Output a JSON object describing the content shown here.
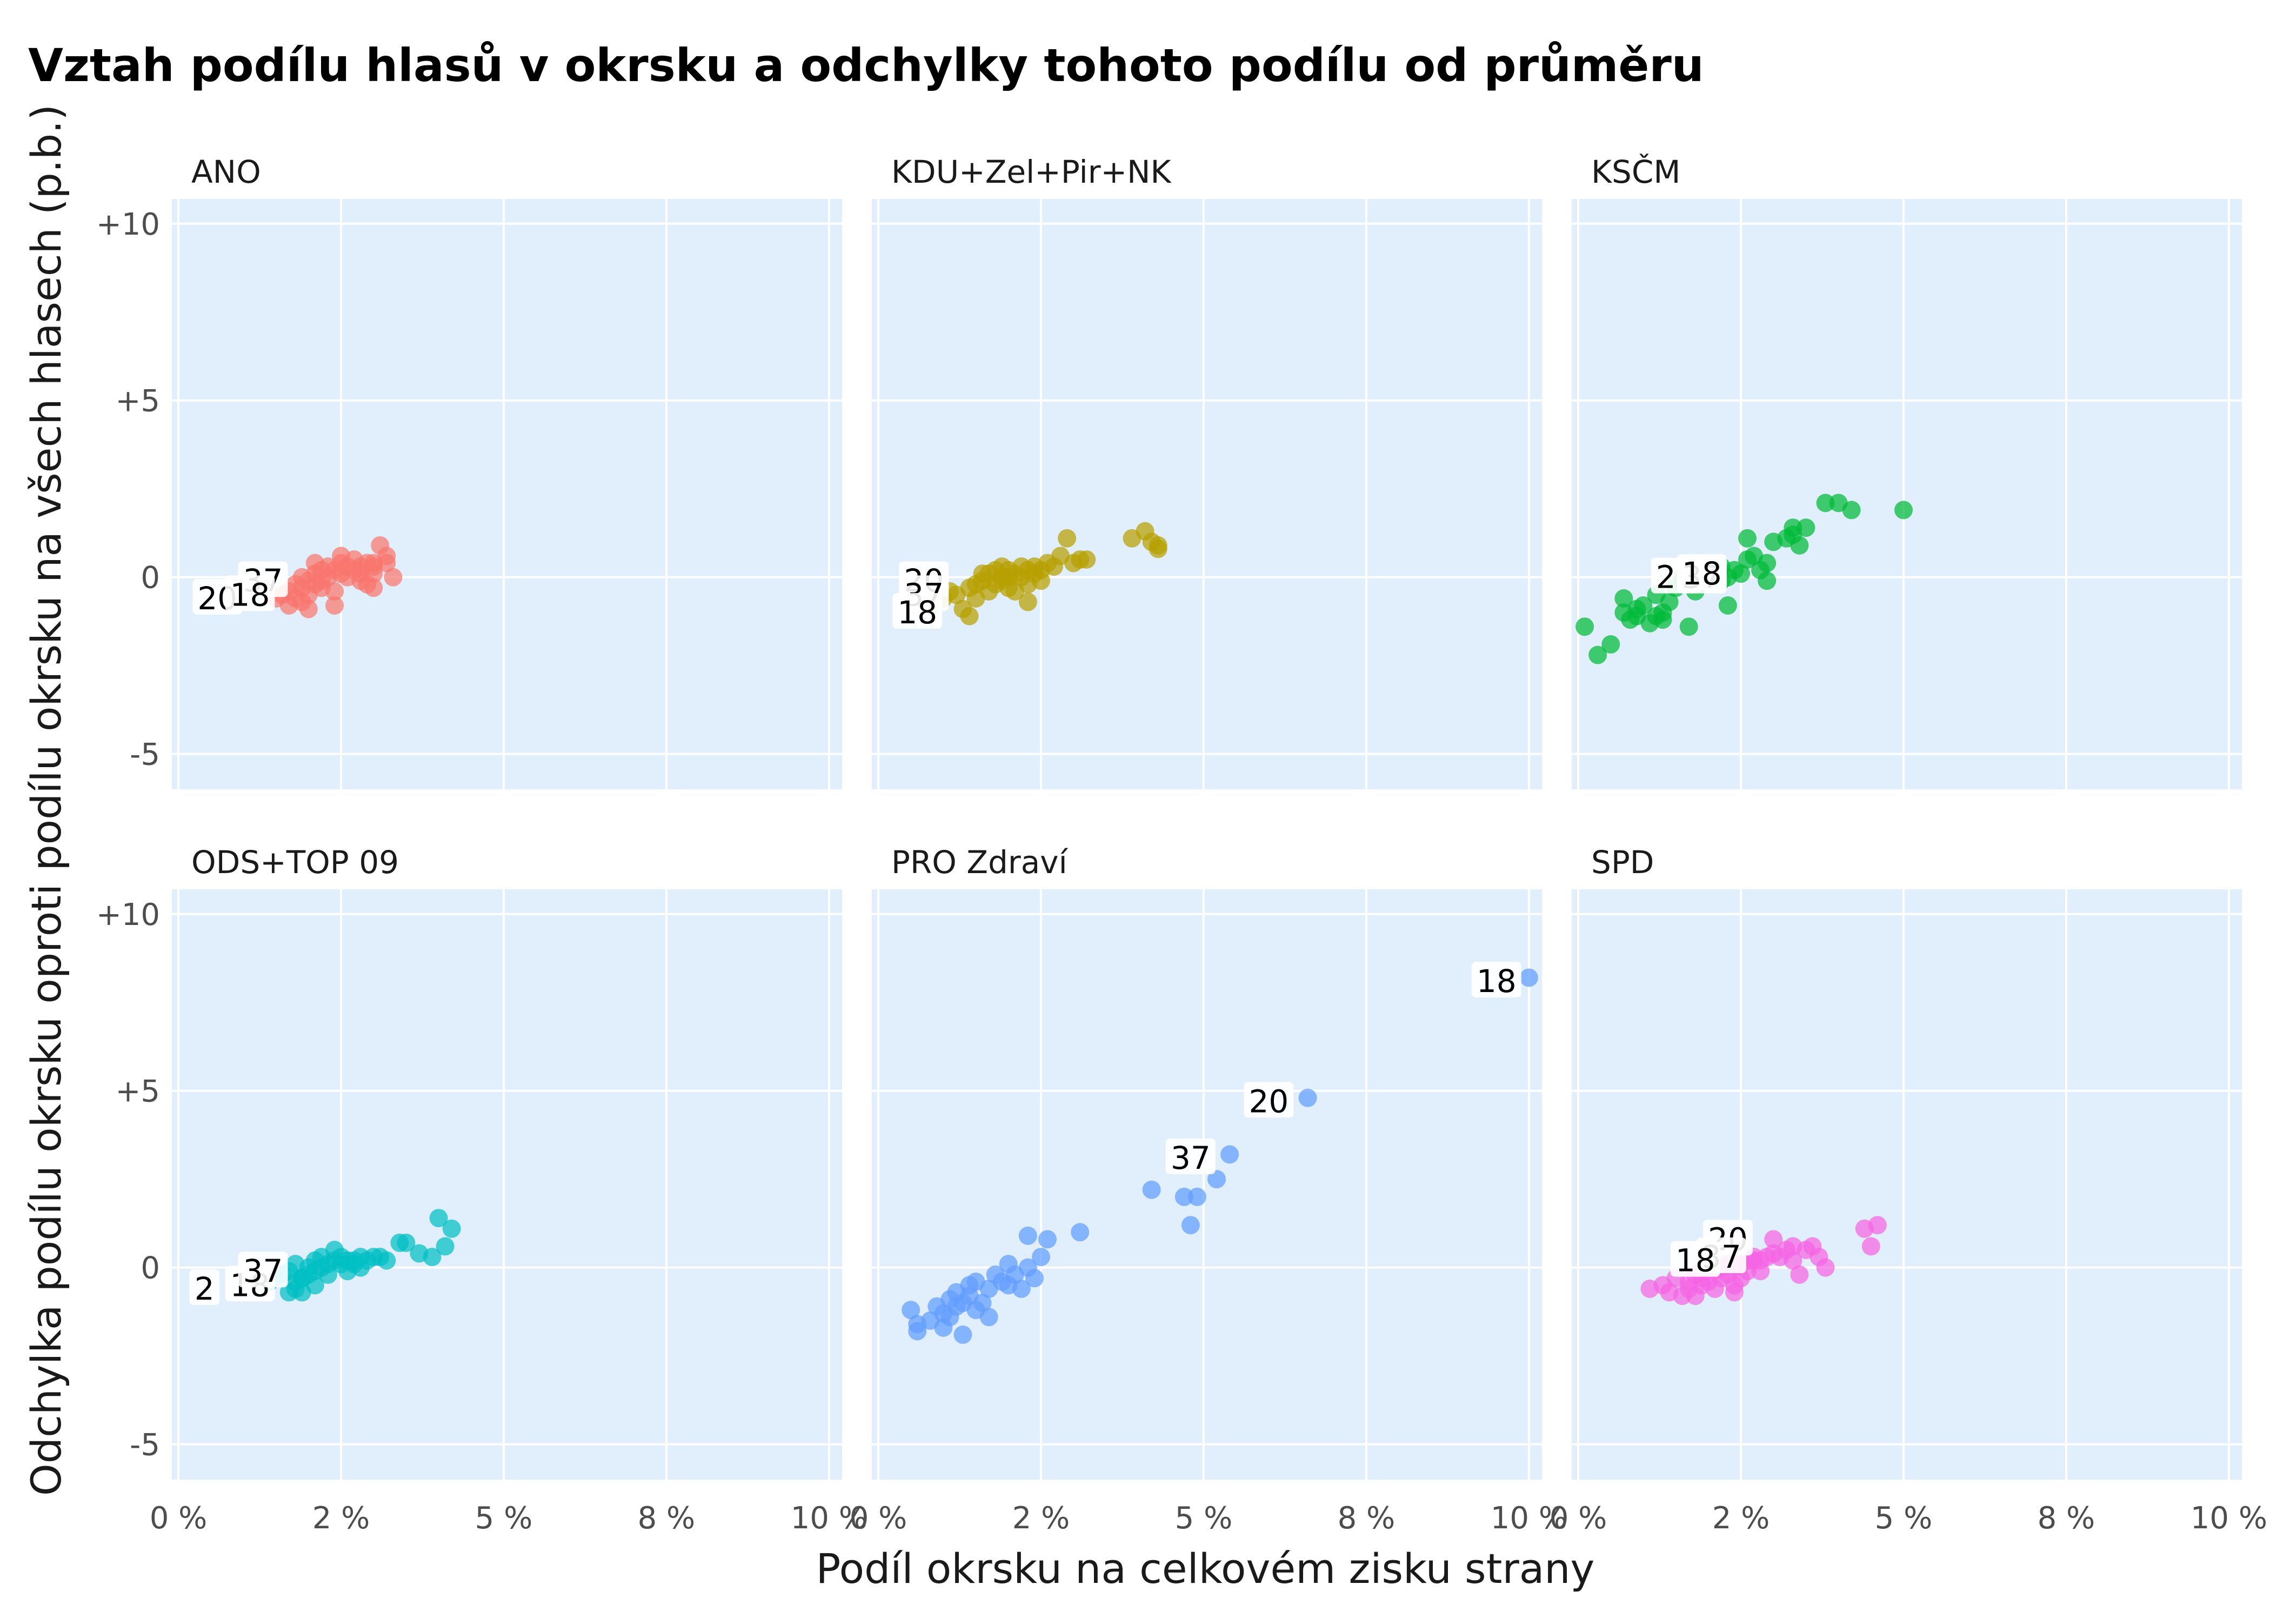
{
  "chart_data": {
    "type": "scatter",
    "title": "Vztah podílu hlasů v okrsku a odchylky tohoto podílu od průměru",
    "xlabel": "Podíl okrsku na celkovém zisku strany",
    "ylabel": "Odchylka podílu okrsku oproti podílu okrsku na všech hlasech (p.b.)",
    "xlim": [
      -0.1,
      10.2
    ],
    "ylim": [
      -6.0,
      10.7
    ],
    "x_ticks": [
      0,
      2.5,
      5,
      7.5,
      10
    ],
    "x_tick_labels": [
      "0 %",
      "2 %",
      "5 %",
      "8 %",
      "10 %"
    ],
    "y_ticks": [
      -5,
      0,
      5,
      10
    ],
    "y_tick_labels": [
      "-5",
      "0",
      "+5",
      "+10"
    ],
    "panel_background": "#e1effc",
    "grid": true,
    "legend": "none",
    "facets": [
      {
        "name": "ANO",
        "color": "#f8766d",
        "points": [
          [
            1.5,
            -0.6
          ],
          [
            1.6,
            -0.5
          ],
          [
            1.7,
            -0.4
          ],
          [
            1.7,
            -0.8
          ],
          [
            1.8,
            -0.2
          ],
          [
            1.8,
            -0.6
          ],
          [
            1.9,
            -0.3
          ],
          [
            1.9,
            -0.7
          ],
          [
            2.0,
            -0.1
          ],
          [
            2.0,
            -0.5
          ],
          [
            2.0,
            -0.9
          ],
          [
            2.1,
            0.1
          ],
          [
            2.1,
            -0.2
          ],
          [
            2.1,
            0.4
          ],
          [
            2.2,
            0.2
          ],
          [
            2.2,
            -0.1
          ],
          [
            2.3,
            0.0
          ],
          [
            2.3,
            0.3
          ],
          [
            2.4,
            0.2
          ],
          [
            2.4,
            -0.4
          ],
          [
            2.4,
            -0.8
          ],
          [
            2.5,
            0.6
          ],
          [
            2.5,
            0.1
          ],
          [
            2.5,
            0.4
          ],
          [
            2.6,
            0.0
          ],
          [
            2.6,
            0.3
          ],
          [
            2.7,
            0.5
          ],
          [
            2.7,
            0.2
          ],
          [
            2.8,
            0.3
          ],
          [
            2.8,
            0.1
          ],
          [
            2.9,
            0.4
          ],
          [
            3.0,
            0.3
          ],
          [
            3.0,
            0.1
          ],
          [
            2.8,
            -0.1
          ],
          [
            3.0,
            0.4
          ],
          [
            2.9,
            -0.2
          ],
          [
            3.0,
            -0.3
          ],
          [
            3.1,
            0.9
          ],
          [
            3.2,
            0.4
          ],
          [
            3.3,
            0.0
          ],
          [
            3.2,
            0.6
          ],
          [
            2.2,
            -0.3
          ],
          [
            1.9,
            0.0
          ]
        ],
        "labels": [
          {
            "text": "20",
            "x": 0.6,
            "y": -0.6
          },
          {
            "text": "37",
            "x": 1.3,
            "y": -0.1
          },
          {
            "text": "18",
            "x": 1.1,
            "y": -0.5
          }
        ]
      },
      {
        "name": "KDU+Zel+Pir+NK",
        "color": "#b79f00",
        "points": [
          [
            0.8,
            -0.8
          ],
          [
            1.0,
            -0.6
          ],
          [
            1.1,
            -0.4
          ],
          [
            1.2,
            -0.5
          ],
          [
            1.3,
            -0.9
          ],
          [
            1.4,
            -1.1
          ],
          [
            1.4,
            -0.3
          ],
          [
            1.5,
            -0.6
          ],
          [
            1.5,
            -0.2
          ],
          [
            1.6,
            -0.1
          ],
          [
            1.7,
            0.1
          ],
          [
            1.7,
            -0.4
          ],
          [
            1.8,
            0.2
          ],
          [
            1.8,
            -0.2
          ],
          [
            1.9,
            0.3
          ],
          [
            1.9,
            -0.1
          ],
          [
            2.0,
            0.0
          ],
          [
            2.0,
            0.2
          ],
          [
            2.0,
            -0.3
          ],
          [
            2.1,
            0.1
          ],
          [
            2.1,
            -0.4
          ],
          [
            2.2,
            0.3
          ],
          [
            2.2,
            0.0
          ],
          [
            2.3,
            0.2
          ],
          [
            2.3,
            -0.2
          ],
          [
            2.3,
            -0.7
          ],
          [
            2.4,
            0.1
          ],
          [
            2.4,
            0.3
          ],
          [
            2.5,
            0.2
          ],
          [
            2.5,
            -0.1
          ],
          [
            2.6,
            0.4
          ],
          [
            2.7,
            0.3
          ],
          [
            2.8,
            0.6
          ],
          [
            2.9,
            1.1
          ],
          [
            3.0,
            0.4
          ],
          [
            3.1,
            0.5
          ],
          [
            3.2,
            0.5
          ],
          [
            3.9,
            1.1
          ],
          [
            4.1,
            1.3
          ],
          [
            4.2,
            1.0
          ],
          [
            4.3,
            0.8
          ],
          [
            4.3,
            0.9
          ],
          [
            1.6,
            0.1
          ],
          [
            1.9,
            0.0
          ]
        ],
        "labels": [
          {
            "text": "20",
            "x": 0.7,
            "y": -0.1
          },
          {
            "text": "37",
            "x": 0.7,
            "y": -0.5
          },
          {
            "text": "18",
            "x": 0.6,
            "y": -1.0
          }
        ]
      },
      {
        "name": "KSČM",
        "color": "#00ba38",
        "points": [
          [
            0.1,
            -1.4
          ],
          [
            0.3,
            -2.2
          ],
          [
            0.5,
            -1.9
          ],
          [
            0.7,
            -0.6
          ],
          [
            0.7,
            -1.0
          ],
          [
            0.8,
            -1.2
          ],
          [
            0.9,
            -0.9
          ],
          [
            0.9,
            -1.1
          ],
          [
            1.0,
            -0.8
          ],
          [
            1.1,
            -1.3
          ],
          [
            1.2,
            -1.1
          ],
          [
            1.2,
            -0.5
          ],
          [
            1.3,
            -1.0
          ],
          [
            1.3,
            -1.2
          ],
          [
            1.4,
            -0.7
          ],
          [
            1.5,
            -0.3
          ],
          [
            1.6,
            -0.1
          ],
          [
            1.7,
            -1.4
          ],
          [
            1.8,
            -0.4
          ],
          [
            1.9,
            0.1
          ],
          [
            2.0,
            0.0
          ],
          [
            2.0,
            0.2
          ],
          [
            2.1,
            0.1
          ],
          [
            2.2,
            -0.1
          ],
          [
            2.2,
            0.3
          ],
          [
            2.3,
            0.0
          ],
          [
            2.3,
            -0.8
          ],
          [
            2.4,
            0.2
          ],
          [
            2.5,
            0.1
          ],
          [
            2.6,
            0.5
          ],
          [
            2.6,
            1.1
          ],
          [
            2.7,
            0.6
          ],
          [
            2.8,
            0.2
          ],
          [
            2.9,
            0.4
          ],
          [
            2.9,
            -0.1
          ],
          [
            3.0,
            1.0
          ],
          [
            3.2,
            1.1
          ],
          [
            3.3,
            1.4
          ],
          [
            3.3,
            1.2
          ],
          [
            3.4,
            0.9
          ],
          [
            3.5,
            1.4
          ],
          [
            3.8,
            2.1
          ],
          [
            4.0,
            2.1
          ],
          [
            4.2,
            1.9
          ],
          [
            5.0,
            1.9
          ],
          [
            1.6,
            0.0
          ]
        ],
        "labels": [
          {
            "text": "20",
            "x": 1.5,
            "y": 0.0
          },
          {
            "text": "37",
            "x": 1.9,
            "y": 0.0
          },
          {
            "text": "18",
            "x": 1.9,
            "y": 0.1
          }
        ]
      },
      {
        "name": "ODS+TOP 09",
        "color": "#00bfc4",
        "points": [
          [
            1.4,
            -0.4
          ],
          [
            1.5,
            -0.3
          ],
          [
            1.6,
            -0.2
          ],
          [
            1.7,
            -0.7
          ],
          [
            1.7,
            -0.1
          ],
          [
            1.8,
            0.1
          ],
          [
            1.8,
            -0.4
          ],
          [
            1.8,
            -0.6
          ],
          [
            1.9,
            -0.3
          ],
          [
            1.9,
            -0.7
          ],
          [
            2.0,
            0.0
          ],
          [
            2.0,
            -0.2
          ],
          [
            2.1,
            0.2
          ],
          [
            2.1,
            -0.1
          ],
          [
            2.1,
            -0.5
          ],
          [
            2.2,
            0.0
          ],
          [
            2.2,
            0.3
          ],
          [
            2.3,
            0.1
          ],
          [
            2.3,
            -0.2
          ],
          [
            2.4,
            0.2
          ],
          [
            2.4,
            0.5
          ],
          [
            2.5,
            0.3
          ],
          [
            2.5,
            0.1
          ],
          [
            2.6,
            -0.1
          ],
          [
            2.6,
            0.2
          ],
          [
            2.7,
            0.1
          ],
          [
            2.7,
            0.2
          ],
          [
            2.8,
            0.3
          ],
          [
            2.8,
            0.0
          ],
          [
            2.9,
            0.2
          ],
          [
            3.0,
            0.3
          ],
          [
            3.1,
            0.3
          ],
          [
            3.2,
            0.2
          ],
          [
            3.4,
            0.7
          ],
          [
            3.5,
            0.7
          ],
          [
            3.7,
            0.4
          ],
          [
            3.9,
            0.3
          ],
          [
            4.0,
            1.4
          ],
          [
            4.1,
            0.6
          ],
          [
            4.2,
            1.1
          ],
          [
            1.9,
            -0.3
          ]
        ],
        "labels": [
          {
            "text": "2",
            "x": 0.4,
            "y": -0.6
          },
          {
            "text": "18",
            "x": 1.1,
            "y": -0.5
          },
          {
            "text": "37",
            "x": 1.3,
            "y": -0.1
          }
        ]
      },
      {
        "name": "PRO Zdraví",
        "color": "#619cff",
        "points": [
          [
            0.5,
            -1.2
          ],
          [
            0.6,
            -1.6
          ],
          [
            0.6,
            -1.8
          ],
          [
            0.8,
            -1.5
          ],
          [
            0.9,
            -1.1
          ],
          [
            1.0,
            -1.3
          ],
          [
            1.0,
            -1.7
          ],
          [
            1.1,
            -0.9
          ],
          [
            1.1,
            -1.4
          ],
          [
            1.2,
            -0.7
          ],
          [
            1.2,
            -1.1
          ],
          [
            1.3,
            -1.0
          ],
          [
            1.3,
            -1.9
          ],
          [
            1.4,
            -0.5
          ],
          [
            1.4,
            -0.8
          ],
          [
            1.5,
            -1.2
          ],
          [
            1.5,
            -0.4
          ],
          [
            1.6,
            -1.0
          ],
          [
            1.7,
            -0.6
          ],
          [
            1.7,
            -1.4
          ],
          [
            1.8,
            -0.2
          ],
          [
            1.9,
            -0.4
          ],
          [
            2.0,
            0.1
          ],
          [
            2.0,
            -0.5
          ],
          [
            2.1,
            -0.2
          ],
          [
            2.2,
            -0.6
          ],
          [
            2.3,
            0.9
          ],
          [
            2.3,
            0.0
          ],
          [
            2.4,
            -0.3
          ],
          [
            2.5,
            0.3
          ],
          [
            2.6,
            0.8
          ],
          [
            3.1,
            1.0
          ],
          [
            4.2,
            2.2
          ],
          [
            4.7,
            2.0
          ],
          [
            4.8,
            1.2
          ],
          [
            4.9,
            2.0
          ],
          [
            5.2,
            2.5
          ],
          [
            5.4,
            3.2
          ],
          [
            6.6,
            4.8
          ],
          [
            10.0,
            8.2
          ]
        ],
        "labels": [
          {
            "text": "18",
            "x": 9.5,
            "y": 8.1
          },
          {
            "text": "20",
            "x": 6.0,
            "y": 4.7
          },
          {
            "text": "37",
            "x": 4.8,
            "y": 3.1
          }
        ]
      },
      {
        "name": "SPD",
        "color": "#f564e3",
        "points": [
          [
            1.1,
            -0.6
          ],
          [
            1.3,
            -0.5
          ],
          [
            1.4,
            -0.7
          ],
          [
            1.5,
            -0.3
          ],
          [
            1.6,
            -0.8
          ],
          [
            1.7,
            -0.4
          ],
          [
            1.7,
            -0.6
          ],
          [
            1.8,
            -0.2
          ],
          [
            1.8,
            -0.8
          ],
          [
            1.9,
            -0.5
          ],
          [
            1.9,
            -0.3
          ],
          [
            2.0,
            -0.4
          ],
          [
            2.1,
            -0.1
          ],
          [
            2.1,
            -0.6
          ],
          [
            2.2,
            0.0
          ],
          [
            2.2,
            -0.3
          ],
          [
            2.3,
            0.1
          ],
          [
            2.3,
            -0.2
          ],
          [
            2.4,
            -0.5
          ],
          [
            2.4,
            0.0
          ],
          [
            2.5,
            -0.3
          ],
          [
            2.5,
            0.1
          ],
          [
            2.6,
            0.2
          ],
          [
            2.6,
            -0.1
          ],
          [
            2.7,
            0.2
          ],
          [
            2.7,
            0.3
          ],
          [
            2.8,
            0.2
          ],
          [
            2.8,
            -0.1
          ],
          [
            2.9,
            0.3
          ],
          [
            3.0,
            0.8
          ],
          [
            3.0,
            0.4
          ],
          [
            3.1,
            0.3
          ],
          [
            3.2,
            0.5
          ],
          [
            3.3,
            0.2
          ],
          [
            3.3,
            0.6
          ],
          [
            3.4,
            -0.2
          ],
          [
            3.5,
            0.5
          ],
          [
            3.6,
            0.6
          ],
          [
            3.7,
            0.3
          ],
          [
            3.8,
            0.0
          ],
          [
            4.4,
            1.1
          ],
          [
            4.5,
            0.6
          ],
          [
            4.6,
            1.2
          ],
          [
            2.4,
            -0.7
          ]
        ],
        "labels": [
          {
            "text": "20",
            "x": 2.3,
            "y": 0.8
          },
          {
            "text": "37",
            "x": 2.2,
            "y": 0.3
          },
          {
            "text": "18",
            "x": 1.8,
            "y": 0.2
          }
        ]
      }
    ]
  }
}
